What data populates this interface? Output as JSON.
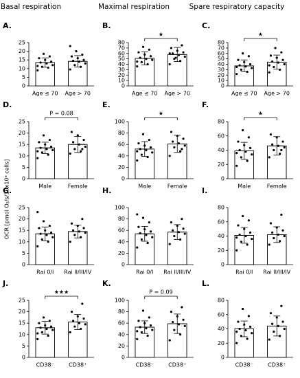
{
  "column_titles": [
    "Basal respiration",
    "Maximal respiration",
    "Spare respiratory capacity"
  ],
  "y_label": "OCR [pmol O₂/s/10x10⁶ cells]",
  "chart_data": [
    {
      "type": "bar",
      "label": "A.",
      "categories": [
        "Age ≤ 70",
        "Age > 70"
      ],
      "values": [
        13.5,
        14.2
      ],
      "errors": [
        2.7,
        3.3
      ],
      "points": [
        [
          9,
          10.5,
          11,
          12,
          13,
          13.5,
          14,
          15,
          16,
          17,
          18.5,
          11.5
        ],
        [
          9.5,
          11,
          12,
          13,
          14,
          14.5,
          15,
          16,
          17,
          18,
          20,
          23
        ]
      ],
      "ylim": [
        0,
        25
      ],
      "yticks": [
        0,
        5,
        10,
        15,
        20,
        25
      ]
    },
    {
      "type": "bar",
      "label": "B.",
      "categories": [
        "Age ≤ 70",
        "Age > 70"
      ],
      "values": [
        51,
        58
      ],
      "errors": [
        12,
        13
      ],
      "points": [
        [
          36,
          40,
          44,
          48,
          50,
          52,
          55,
          58,
          62,
          67,
          72,
          45
        ],
        [
          40,
          46,
          50,
          54,
          57,
          60,
          62,
          65,
          70,
          75,
          52,
          60
        ]
      ],
      "annotation": "★",
      "ylim": [
        0,
        80
      ],
      "yticks": [
        0,
        10,
        20,
        30,
        40,
        50,
        60,
        70,
        80
      ]
    },
    {
      "type": "bar",
      "label": "C.",
      "categories": [
        "Age ≤ 70",
        "Age > 70"
      ],
      "values": [
        37,
        44
      ],
      "errors": [
        11,
        13
      ],
      "points": [
        [
          22,
          26,
          30,
          33,
          36,
          38,
          40,
          44,
          48,
          55,
          60,
          35
        ],
        [
          25,
          30,
          35,
          40,
          43,
          45,
          48,
          52,
          56,
          62,
          70,
          38
        ]
      ],
      "annotation": "★",
      "ylim": [
        0,
        80
      ],
      "yticks": [
        0,
        10,
        20,
        30,
        40,
        50,
        60,
        70,
        80
      ]
    },
    {
      "type": "bar",
      "label": "D.",
      "categories": [
        "Male",
        "Female"
      ],
      "values": [
        13.5,
        15
      ],
      "errors": [
        2.5,
        3.5
      ],
      "points": [
        [
          9,
          10.5,
          11.5,
          12.5,
          13,
          13.5,
          14,
          15,
          16,
          17,
          19,
          12
        ],
        [
          11,
          12,
          13,
          14,
          15,
          16,
          17,
          19,
          20.5,
          13
        ]
      ],
      "annotation": "P = 0.08",
      "ylim": [
        0,
        25
      ],
      "yticks": [
        0,
        5,
        10,
        15,
        20,
        25
      ]
    },
    {
      "type": "bar",
      "label": "E.",
      "categories": [
        "Male",
        "Female"
      ],
      "values": [
        52,
        61
      ],
      "errors": [
        13,
        15
      ],
      "points": [
        [
          32,
          38,
          42,
          46,
          50,
          52,
          55,
          58,
          62,
          68,
          78,
          48
        ],
        [
          40,
          48,
          55,
          58,
          62,
          65,
          70,
          75,
          82,
          52
        ]
      ],
      "annotation": "★",
      "ylim": [
        0,
        100
      ],
      "yticks": [
        0,
        20,
        40,
        60,
        80,
        100
      ]
    },
    {
      "type": "bar",
      "label": "F.",
      "categories": [
        "Male",
        "Female"
      ],
      "values": [
        39,
        46
      ],
      "errors": [
        12,
        13
      ],
      "points": [
        [
          18,
          25,
          30,
          34,
          38,
          40,
          43,
          47,
          52,
          58,
          68,
          36
        ],
        [
          30,
          35,
          40,
          44,
          46,
          48,
          52,
          58,
          62,
          40
        ]
      ],
      "annotation": "★",
      "ylim": [
        0,
        80
      ],
      "yticks": [
        0,
        20,
        40,
        60,
        80
      ]
    },
    {
      "type": "bar",
      "label": "G.",
      "categories": [
        "Rai 0/I",
        "Rai II/III/IV"
      ],
      "values": [
        13.5,
        14.5
      ],
      "errors": [
        3,
        2.8
      ],
      "points": [
        [
          8,
          10,
          11,
          12,
          13,
          13.5,
          14,
          15,
          16,
          17,
          19,
          23
        ],
        [
          10,
          12,
          13,
          14,
          14.5,
          15,
          16,
          17,
          18,
          20
        ]
      ],
      "ylim": [
        0,
        25
      ],
      "yticks": [
        0,
        5,
        10,
        15,
        20,
        25
      ]
    },
    {
      "type": "bar",
      "label": "H.",
      "categories": [
        "Rai 0/I",
        "Rai II/III/IV"
      ],
      "values": [
        54,
        57
      ],
      "errors": [
        13,
        13
      ],
      "points": [
        [
          30,
          38,
          44,
          48,
          52,
          55,
          58,
          62,
          66,
          74,
          82,
          88
        ],
        [
          36,
          44,
          50,
          54,
          57,
          60,
          63,
          68,
          74,
          80
        ]
      ],
      "ylim": [
        0,
        100
      ],
      "yticks": [
        0,
        20,
        40,
        60,
        80,
        100
      ]
    },
    {
      "type": "bar",
      "label": "I.",
      "categories": [
        "Rai 0/I",
        "Rai II/III/IV"
      ],
      "values": [
        41,
        42
      ],
      "errors": [
        11,
        11
      ],
      "points": [
        [
          20,
          28,
          32,
          36,
          40,
          42,
          45,
          50,
          55,
          62,
          68,
          38
        ],
        [
          28,
          33,
          37,
          40,
          42,
          45,
          48,
          52,
          58,
          70
        ]
      ],
      "ylim": [
        0,
        80
      ],
      "yticks": [
        0,
        20,
        40,
        60,
        80
      ]
    },
    {
      "type": "bar",
      "label": "J.",
      "categories": [
        "CD38⁻",
        "CD38⁺"
      ],
      "values": [
        13,
        15.5
      ],
      "errors": [
        2.8,
        3.3
      ],
      "points": [
        [
          8,
          9.5,
          11,
          12,
          12.5,
          13,
          13.5,
          14,
          15,
          16,
          17.5,
          10.5
        ],
        [
          11,
          12.5,
          13.5,
          14.5,
          15,
          16,
          17,
          18,
          20,
          23.5
        ]
      ],
      "annotation": "★★★",
      "ylim": [
        0,
        25
      ],
      "yticks": [
        0,
        5,
        10,
        15,
        20,
        25
      ]
    },
    {
      "type": "bar",
      "label": "K.",
      "categories": [
        "CD38⁻",
        "CD38⁺"
      ],
      "values": [
        53,
        59
      ],
      "errors": [
        11,
        17
      ],
      "points": [
        [
          32,
          38,
          44,
          48,
          51,
          53,
          56,
          60,
          64,
          70,
          82,
          46
        ],
        [
          30,
          40,
          48,
          55,
          58,
          62,
          66,
          72,
          80,
          88
        ]
      ],
      "annotation": "P = 0.09",
      "ylim": [
        0,
        100
      ],
      "yticks": [
        0,
        20,
        40,
        60,
        80,
        100
      ]
    },
    {
      "type": "bar",
      "label": "L.",
      "categories": [
        "CD38⁻",
        "CD38⁺"
      ],
      "values": [
        40,
        44
      ],
      "errors": [
        11,
        14
      ],
      "points": [
        [
          20,
          26,
          30,
          34,
          38,
          40,
          43,
          46,
          50,
          58,
          68,
          36
        ],
        [
          25,
          30,
          36,
          40,
          44,
          47,
          50,
          56,
          62,
          72
        ]
      ],
      "ylim": [
        0,
        80
      ],
      "yticks": [
        0,
        20,
        40,
        60,
        80
      ]
    }
  ]
}
